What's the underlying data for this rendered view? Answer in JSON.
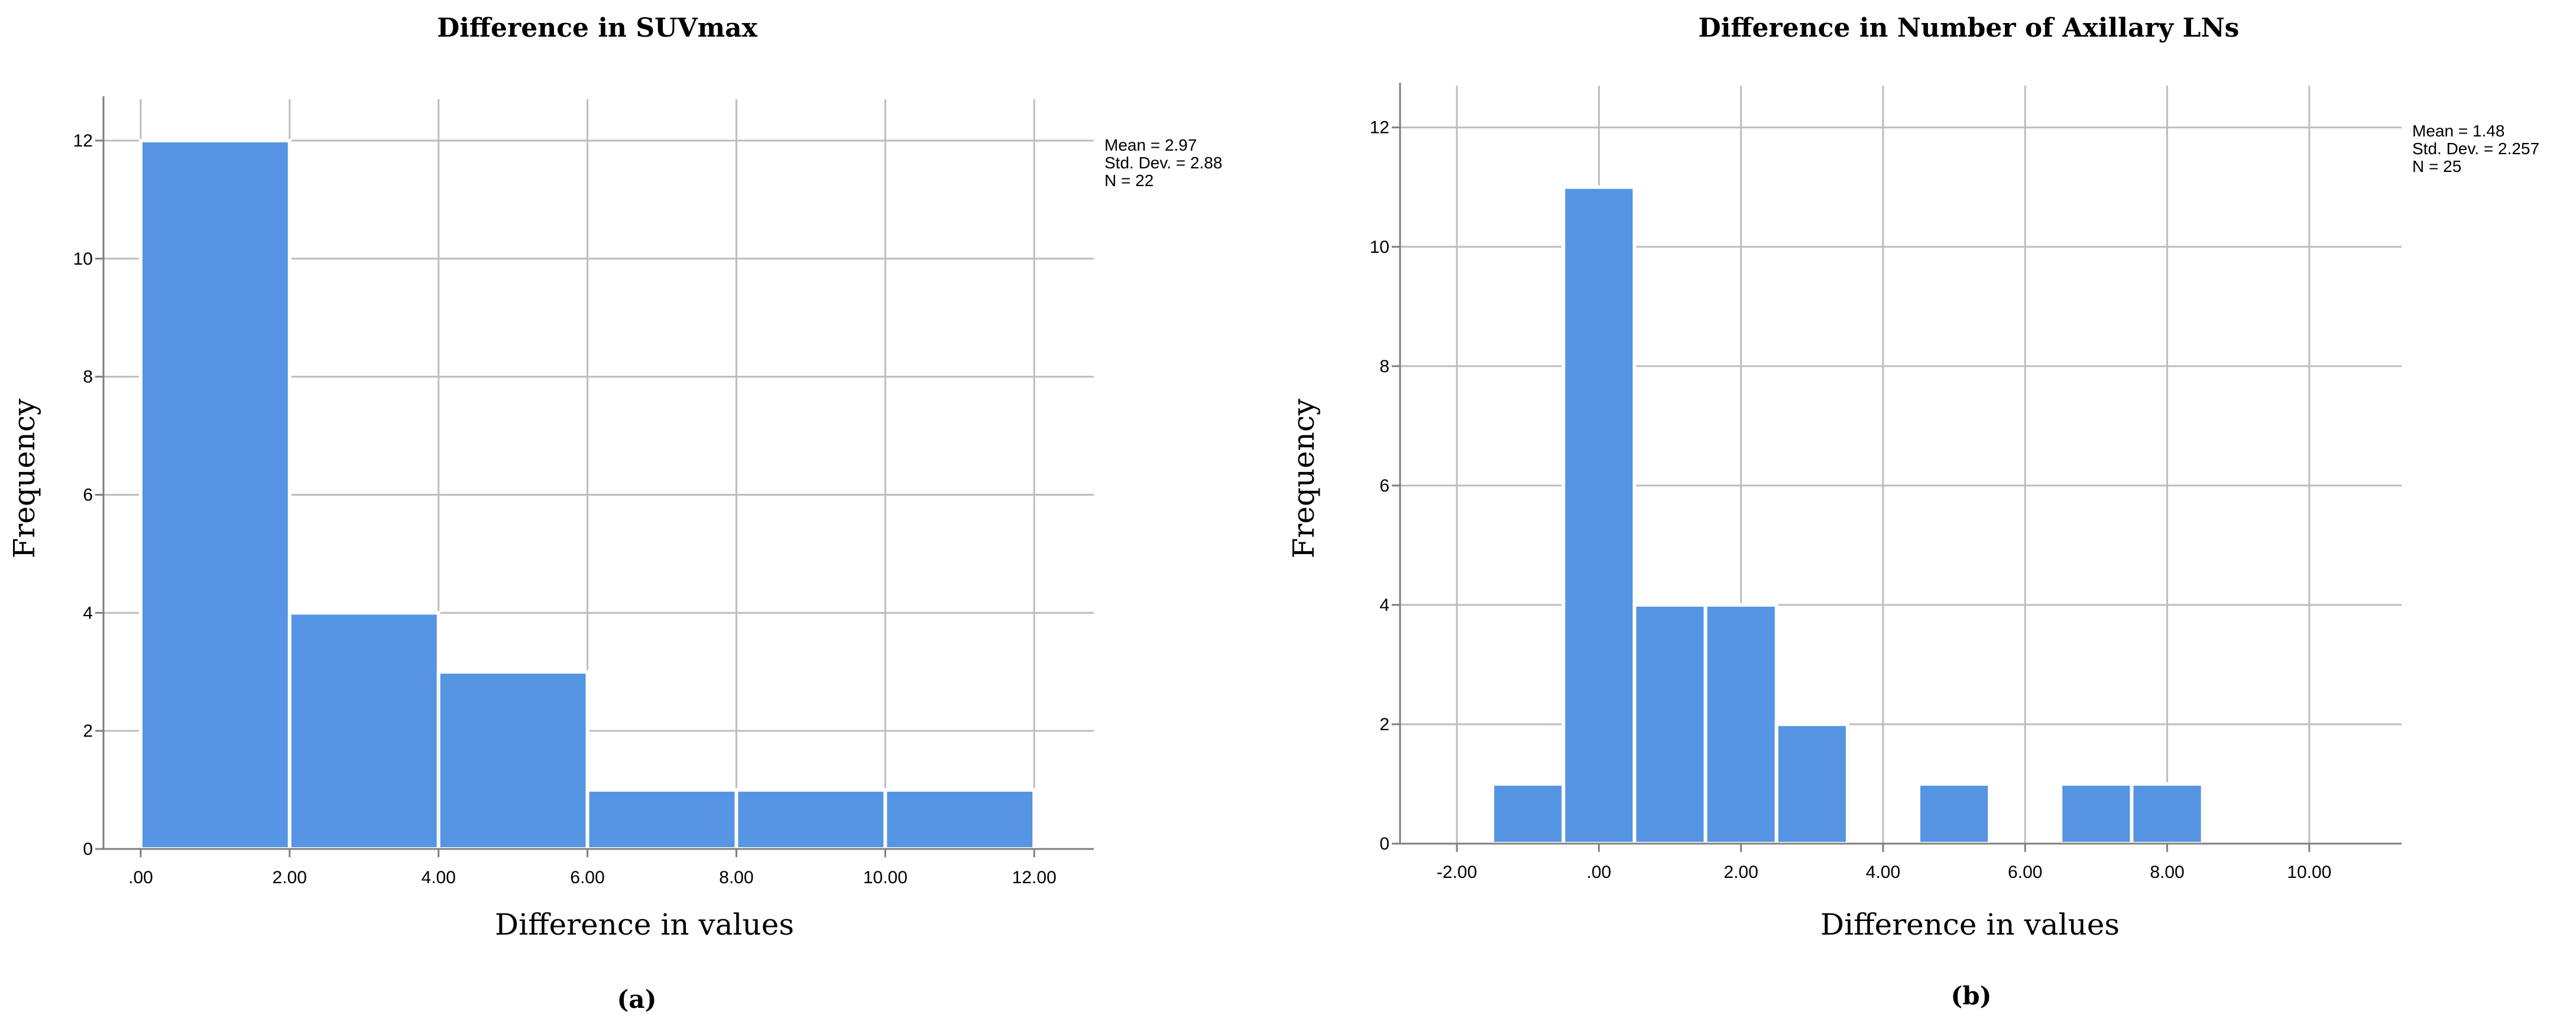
{
  "colors": {
    "bar": "#5595e3",
    "bar_edge": "#ffffff",
    "grid": "#bdbdbd",
    "axis": "#7f7f7f"
  },
  "chart_data": [
    {
      "type": "bar",
      "title": "Difference in SUVmax",
      "xlabel": "Difference in values",
      "ylabel": "Frequency",
      "panel_label": "(a)",
      "bin_edges": [
        0,
        2,
        4,
        6,
        8,
        10,
        12
      ],
      "values": [
        12,
        4,
        3,
        1,
        1,
        1
      ],
      "xlim": [
        -0.5,
        12.8
      ],
      "ylim": [
        0,
        12.7
      ],
      "x_ticks": [
        0,
        2,
        4,
        6,
        8,
        10,
        12
      ],
      "x_tick_labels": [
        ".00",
        "2.00",
        "4.00",
        "6.00",
        "8.00",
        "10.00",
        "12.00"
      ],
      "y_ticks": [
        0,
        2,
        4,
        6,
        8,
        10,
        12
      ],
      "y_tick_labels": [
        "0",
        "2",
        "4",
        "6",
        "8",
        "10",
        "12"
      ],
      "grid": true,
      "stats": [
        "Mean = 2.97",
        "Std. Dev. = 2.88",
        "N = 22"
      ]
    },
    {
      "type": "bar",
      "title": "Difference in Number of Axillary LNs",
      "xlabel": "Difference in values",
      "ylabel": "Frequency",
      "panel_label": "(b)",
      "bin_edges": [
        -1.5,
        -0.5,
        0.5,
        1.5,
        2.5,
        3.5,
        4.5,
        5.5,
        6.5,
        7.5,
        8.5
      ],
      "values": [
        1,
        11,
        4,
        4,
        2,
        0,
        1,
        0,
        1,
        1
      ],
      "xlim": [
        -2.8,
        11.3
      ],
      "ylim": [
        0,
        12.7
      ],
      "x_ticks": [
        -2,
        0,
        2,
        4,
        6,
        8,
        10
      ],
      "x_tick_labels": [
        "-2.00",
        ".00",
        "2.00",
        "4.00",
        "6.00",
        "8.00",
        "10.00"
      ],
      "y_ticks": [
        0,
        2,
        4,
        6,
        8,
        10,
        12
      ],
      "y_tick_labels": [
        "0",
        "2",
        "4",
        "6",
        "8",
        "10",
        "12"
      ],
      "grid": true,
      "stats": [
        "Mean = 1.48",
        "Std. Dev. = 2.257",
        "N = 25"
      ]
    }
  ]
}
